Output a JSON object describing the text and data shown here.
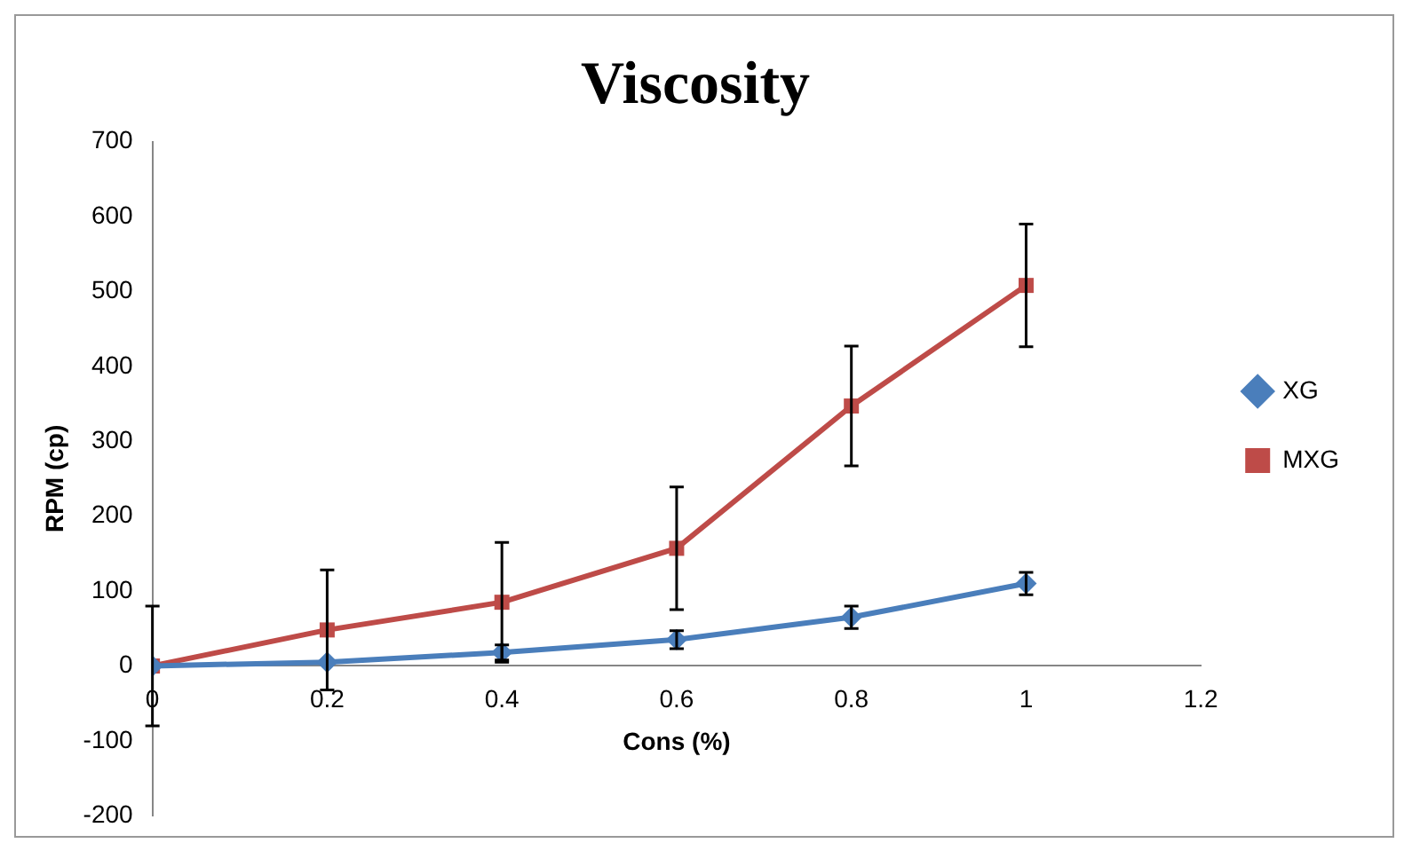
{
  "chart_data": {
    "type": "line",
    "title": "Viscosity",
    "xlabel": "Cons (%)",
    "ylabel": "RPM (cp)",
    "x": [
      0,
      0.2,
      0.4,
      0.6,
      0.8,
      1
    ],
    "series": [
      {
        "name": "XG",
        "color": "#4a7ebb",
        "marker": "diamond",
        "values": [
          0,
          5,
          18,
          35,
          65,
          110
        ],
        "errors": [
          null,
          null,
          10,
          12,
          15,
          15
        ]
      },
      {
        "name": "MXG",
        "color": "#be4b48",
        "marker": "square",
        "values": [
          0,
          48,
          85,
          157,
          347,
          508
        ],
        "errors": [
          80,
          80,
          80,
          82,
          80,
          82
        ]
      }
    ],
    "xlim": [
      0,
      1.2
    ],
    "xticks": [
      0,
      0.2,
      0.4,
      0.6,
      0.8,
      1,
      1.2
    ],
    "ylim": [
      -200,
      700
    ],
    "yticks": [
      -200,
      -100,
      0,
      100,
      200,
      300,
      400,
      500,
      600,
      700
    ],
    "grid": false,
    "legend": "right",
    "line_style": "solid"
  }
}
